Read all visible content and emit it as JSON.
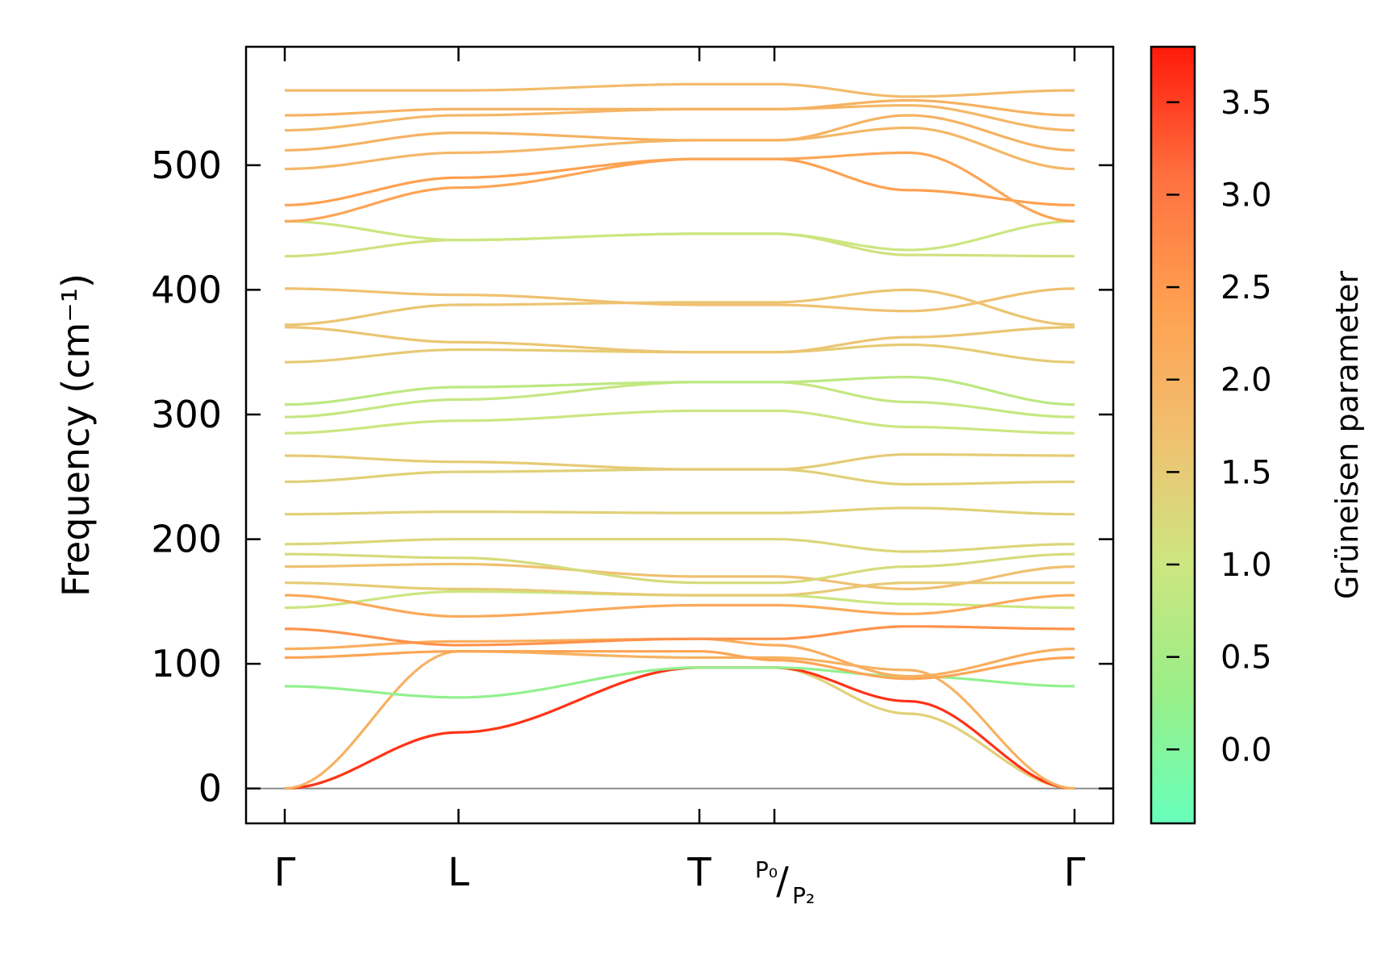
{
  "chart_data": {
    "type": "line",
    "ylabel": "Frequency (cm⁻¹)",
    "ylim": [
      -28,
      595
    ],
    "yticks": [
      0,
      100,
      200,
      300,
      400,
      500
    ],
    "xticks": [
      {
        "pos": 0.0,
        "label": "Γ"
      },
      {
        "pos": 0.22,
        "label": "L"
      },
      {
        "pos": 0.525,
        "label": "T"
      },
      {
        "pos": 0.62,
        "label": "P₀/P₂"
      },
      {
        "pos": 1.0,
        "label": "Γ"
      }
    ],
    "zero_line": true,
    "colorbar": {
      "label": "Grüneisen parameter",
      "range": [
        -0.4,
        3.8
      ],
      "ticks": [
        "0.0",
        "0.5",
        "1.0",
        "1.5",
        "2.0",
        "2.5",
        "3.0",
        "3.5"
      ],
      "tick_values": [
        0.0,
        0.5,
        1.0,
        1.5,
        2.0,
        2.5,
        3.0,
        3.5
      ],
      "colors": [
        "#66ffbb",
        "#99ee88",
        "#cce680",
        "#f0c070",
        "#ffa050",
        "#ff7040",
        "#ff1a0a"
      ]
    },
    "x_points": [
      0.0,
      0.22,
      0.525,
      0.62,
      0.79,
      1.0
    ],
    "series": [
      {
        "values": [
          0,
          45,
          97,
          97,
          60,
          0
        ],
        "g": 1.4
      },
      {
        "values": [
          0,
          45,
          97,
          97,
          70,
          0
        ],
        "g": 3.6
      },
      {
        "values": [
          0,
          110,
          105,
          105,
          95,
          0
        ],
        "g": 2.0
      },
      {
        "values": [
          82,
          73,
          97,
          97,
          90,
          82
        ],
        "g": 0.2
      },
      {
        "values": [
          105,
          110,
          110,
          103,
          88,
          105
        ],
        "g": 2.3
      },
      {
        "values": [
          112,
          118,
          120,
          115,
          90,
          112
        ],
        "g": 2.1
      },
      {
        "values": [
          128,
          115,
          120,
          120,
          130,
          128
        ],
        "g": 2.6
      },
      {
        "values": [
          145,
          158,
          155,
          155,
          148,
          145
        ],
        "g": 1.0
      },
      {
        "values": [
          155,
          138,
          147,
          147,
          140,
          155
        ],
        "g": 2.2
      },
      {
        "values": [
          165,
          160,
          155,
          155,
          165,
          165
        ],
        "g": 1.5
      },
      {
        "values": [
          178,
          180,
          170,
          170,
          160,
          178
        ],
        "g": 1.7
      },
      {
        "values": [
          188,
          185,
          165,
          165,
          178,
          188
        ],
        "g": 1.2
      },
      {
        "values": [
          196,
          200,
          200,
          200,
          190,
          196
        ],
        "g": 1.3
      },
      {
        "values": [
          220,
          222,
          221,
          221,
          225,
          220
        ],
        "g": 1.4
      },
      {
        "values": [
          246,
          254,
          256,
          256,
          244,
          246
        ],
        "g": 1.4
      },
      {
        "values": [
          267,
          262,
          256,
          256,
          268,
          267
        ],
        "g": 1.5
      },
      {
        "values": [
          285,
          295,
          303,
          303,
          290,
          285
        ],
        "g": 1.0
      },
      {
        "values": [
          298,
          312,
          326,
          326,
          310,
          298
        ],
        "g": 0.9
      },
      {
        "values": [
          308,
          322,
          326,
          326,
          330,
          308
        ],
        "g": 0.8
      },
      {
        "values": [
          342,
          352,
          350,
          350,
          356,
          342
        ],
        "g": 1.5
      },
      {
        "values": [
          370,
          358,
          350,
          350,
          362,
          370
        ],
        "g": 1.6
      },
      {
        "values": [
          372,
          388,
          390,
          390,
          400,
          372
        ],
        "g": 1.6
      },
      {
        "values": [
          401,
          396,
          388,
          388,
          383,
          401
        ],
        "g": 1.7
      },
      {
        "values": [
          427,
          440,
          445,
          445,
          428,
          427
        ],
        "g": 1.1
      },
      {
        "values": [
          455,
          440,
          445,
          445,
          432,
          455
        ],
        "g": 1.0
      },
      {
        "values": [
          468,
          490,
          505,
          505,
          480,
          468
        ],
        "g": 2.4
      },
      {
        "values": [
          455,
          482,
          505,
          505,
          510,
          455
        ],
        "g": 2.3
      },
      {
        "values": [
          497,
          510,
          520,
          520,
          530,
          497
        ],
        "g": 1.9
      },
      {
        "values": [
          512,
          526,
          520,
          520,
          540,
          512
        ],
        "g": 2.0
      },
      {
        "values": [
          528,
          540,
          545,
          545,
          548,
          528
        ],
        "g": 1.9
      },
      {
        "values": [
          540,
          545,
          545,
          545,
          552,
          540
        ],
        "g": 2.0
      },
      {
        "values": [
          560,
          560,
          565,
          565,
          555,
          560
        ],
        "g": 1.8
      }
    ]
  }
}
